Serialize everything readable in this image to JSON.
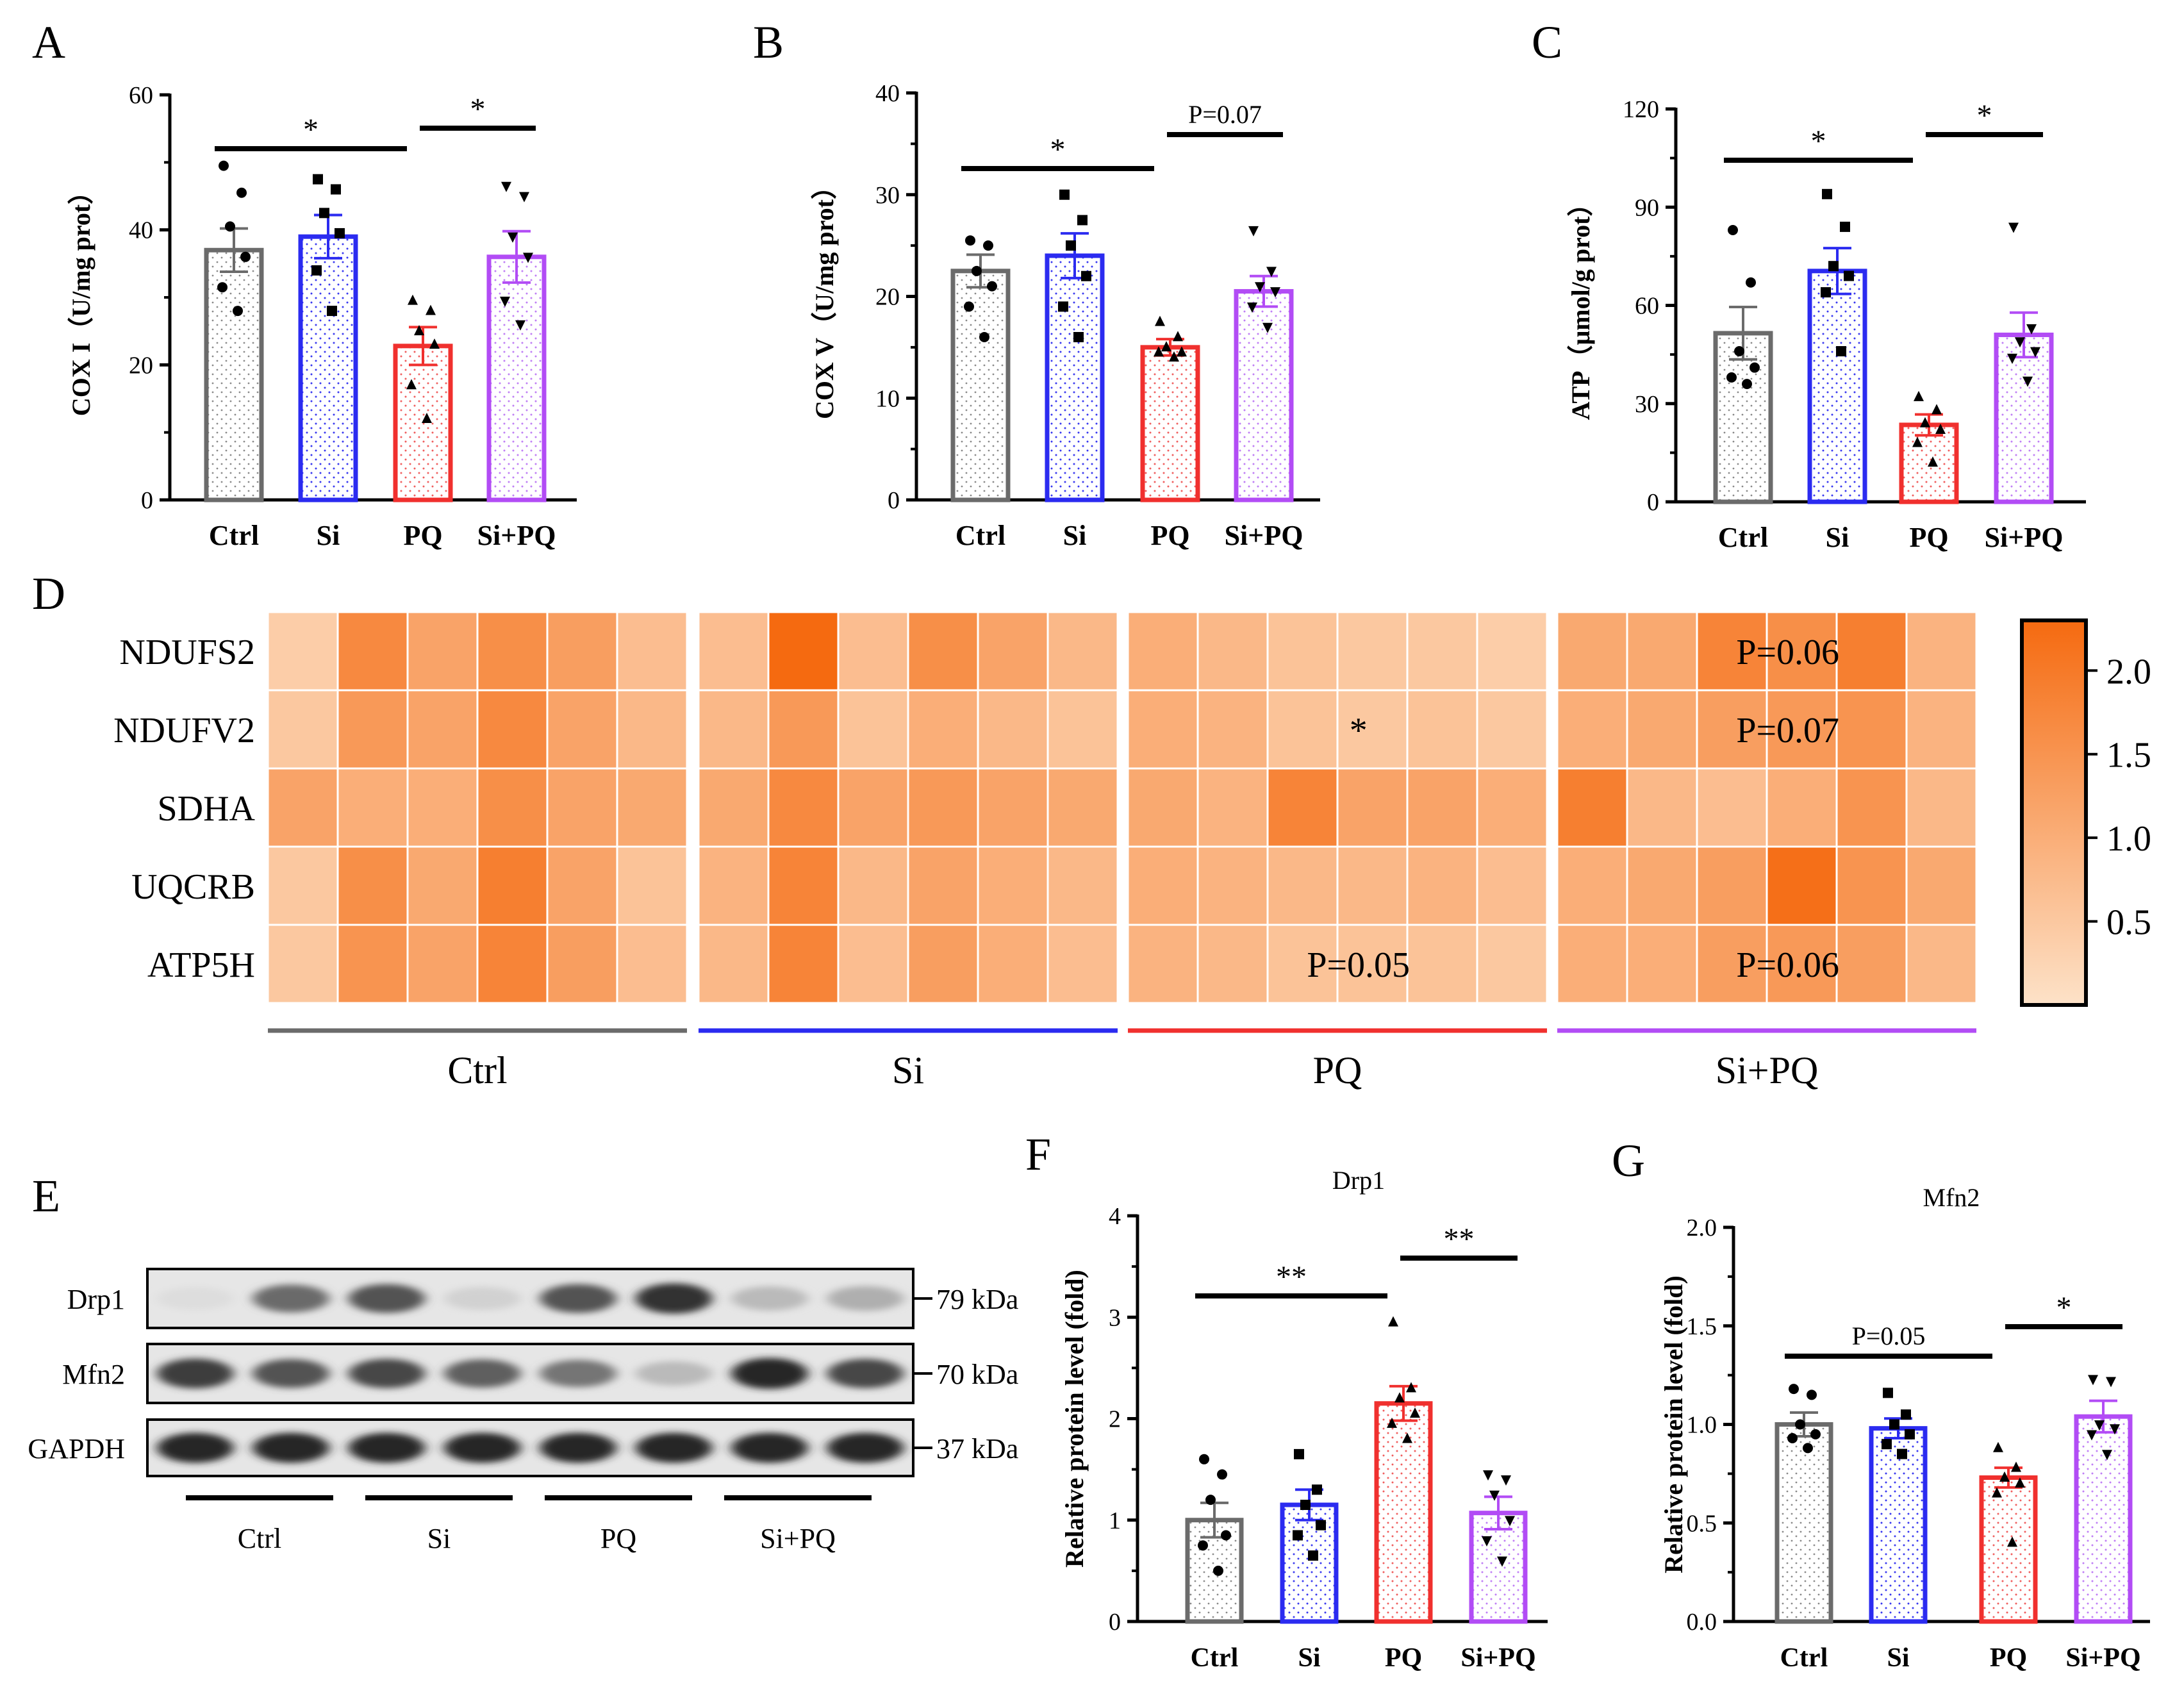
{
  "figure": {
    "panel_letters": [
      "A",
      "B",
      "C",
      "D",
      "E",
      "F",
      "G"
    ],
    "colors": {
      "Ctrl": "#6b6b6b",
      "Si": "#2b2bf0",
      "PQ": "#f0302e",
      "Si+PQ": "#b24cf5",
      "axis": "#000000",
      "heat_low": "#fde2c8",
      "heat_high": "#f56a10"
    }
  },
  "chart_data": [
    {
      "panel": "A",
      "type": "bar",
      "categories": [
        "Ctrl",
        "Si",
        "PQ",
        "Si+PQ"
      ],
      "values": [
        37,
        39,
        22.8,
        36
      ],
      "errors": [
        3.2,
        3.2,
        2.8,
        3.8
      ],
      "points": [
        [
          49.5,
          45.5,
          40.5,
          36,
          31.5,
          28
        ],
        [
          47.5,
          46,
          42.5,
          39.5,
          34,
          28
        ],
        [
          29.5,
          28,
          25,
          23,
          17,
          12
        ],
        [
          46.5,
          45,
          39,
          36,
          29.5,
          26
        ]
      ],
      "ylabel": "COX I（U/mg prot）",
      "ylim": [
        0,
        60
      ],
      "yticks": [
        "0",
        "20",
        "40",
        "60"
      ],
      "sig": [
        {
          "from": 0,
          "to": 2,
          "label": "*"
        },
        {
          "from": 2,
          "to": 3,
          "label": "*"
        }
      ]
    },
    {
      "panel": "B",
      "type": "bar",
      "categories": [
        "Ctrl",
        "Si",
        "PQ",
        "Si+PQ"
      ],
      "values": [
        22.5,
        24,
        15,
        20.5
      ],
      "errors": [
        1.6,
        2.2,
        0.8,
        1.5
      ],
      "points": [
        [
          25.5,
          25,
          22.5,
          21,
          19,
          16
        ],
        [
          30,
          27.5,
          25,
          22,
          19,
          16
        ],
        [
          17.5,
          16,
          15,
          14.5,
          14.5,
          14
        ],
        [
          26.5,
          22.5,
          21,
          20.5,
          19,
          17
        ]
      ],
      "ylabel": "COX V（U/mg prot）",
      "ylim": [
        0,
        40
      ],
      "yticks": [
        "0",
        "10",
        "20",
        "30",
        "40"
      ],
      "sig": [
        {
          "from": 0,
          "to": 2,
          "label": "*"
        },
        {
          "from": 2,
          "to": 3,
          "label": "P=0.07"
        }
      ]
    },
    {
      "panel": "C",
      "type": "bar",
      "categories": [
        "Ctrl",
        "Si",
        "PQ",
        "Si+PQ"
      ],
      "values": [
        51.5,
        70.5,
        23.5,
        51
      ],
      "errors": [
        8.0,
        7.0,
        3.2,
        6.8
      ],
      "points": [
        [
          83,
          67,
          46,
          41,
          38,
          36
        ],
        [
          94,
          84,
          72,
          69,
          64,
          46
        ],
        [
          32,
          28,
          24,
          22,
          18,
          12
        ],
        [
          84,
          53,
          49,
          46,
          44,
          37
        ]
      ],
      "ylabel": "ATP（μmol/g prot）",
      "ylim": [
        0,
        120
      ],
      "yticks": [
        "0",
        "30",
        "60",
        "90",
        "120"
      ],
      "sig": [
        {
          "from": 0,
          "to": 2,
          "label": "*"
        },
        {
          "from": 2,
          "to": 3,
          "label": "*"
        }
      ]
    },
    {
      "panel": "D",
      "type": "heatmap",
      "rows": [
        "NDUFS2",
        "NDUFV2",
        "SDHA",
        "UQCRB",
        "ATP5H"
      ],
      "groups": [
        "Ctrl",
        "Si",
        "PQ",
        "Si+PQ"
      ],
      "values": [
        [
          [
            0.4,
            1.7,
            1.2,
            1.6,
            1.3,
            0.7
          ],
          [
            0.7,
            2.3,
            0.7,
            1.6,
            1.2,
            0.8
          ],
          [
            1.0,
            0.8,
            0.6,
            0.5,
            0.5,
            0.4
          ],
          [
            1.1,
            1.1,
            1.8,
            1.6,
            1.9,
            0.9
          ]
        ],
        [
          [
            0.5,
            1.4,
            1.2,
            1.7,
            1.2,
            0.8
          ],
          [
            0.8,
            1.4,
            0.6,
            1.0,
            0.8,
            0.6
          ],
          [
            1.0,
            0.9,
            0.6,
            0.5,
            0.6,
            0.5
          ],
          [
            1.0,
            1.1,
            1.3,
            1.4,
            1.5,
            0.9
          ]
        ],
        [
          [
            1.2,
            1.0,
            1.0,
            1.6,
            1.2,
            1.1
          ],
          [
            1.1,
            1.7,
            1.2,
            1.4,
            1.2,
            1.1
          ],
          [
            1.1,
            0.9,
            1.8,
            1.2,
            1.2,
            1.0
          ],
          [
            1.9,
            0.8,
            0.7,
            1.0,
            1.5,
            0.8
          ]
        ],
        [
          [
            0.5,
            1.6,
            1.1,
            1.9,
            1.2,
            0.6
          ],
          [
            0.9,
            1.8,
            0.8,
            1.2,
            1.0,
            0.8
          ],
          [
            1.0,
            0.9,
            0.8,
            0.8,
            0.9,
            0.7
          ],
          [
            1.0,
            1.1,
            1.3,
            2.2,
            1.5,
            1.1
          ]
        ],
        [
          [
            0.5,
            1.5,
            1.2,
            1.8,
            1.3,
            0.7
          ],
          [
            0.8,
            1.8,
            0.7,
            1.3,
            1.0,
            0.7
          ],
          [
            0.9,
            0.8,
            0.6,
            0.6,
            0.6,
            0.5
          ],
          [
            1.0,
            1.0,
            1.3,
            1.4,
            1.3,
            0.8
          ]
        ]
      ],
      "annotations": [
        {
          "row": 0,
          "group": 3,
          "label": "P=0.06"
        },
        {
          "row": 1,
          "group": 2,
          "label": "*"
        },
        {
          "row": 1,
          "group": 3,
          "label": "P=0.07"
        },
        {
          "row": 4,
          "group": 2,
          "label": "P=0.05"
        },
        {
          "row": 4,
          "group": 3,
          "label": "P=0.06"
        }
      ],
      "colorbar": {
        "min": 0,
        "max": 2.3,
        "ticks": [
          "2.0",
          "1.5",
          "1.0",
          "0.5"
        ]
      }
    },
    {
      "panel": "F",
      "type": "bar",
      "title": "Drp1",
      "categories": [
        "Ctrl",
        "Si",
        "PQ",
        "Si+PQ"
      ],
      "values": [
        1.0,
        1.15,
        2.15,
        1.07
      ],
      "errors": [
        0.17,
        0.15,
        0.17,
        0.16
      ],
      "points": [
        [
          1.6,
          1.45,
          1.2,
          0.85,
          0.75,
          0.5
        ],
        [
          1.65,
          1.3,
          1.15,
          0.95,
          0.85,
          0.65
        ],
        [
          2.95,
          2.3,
          2.2,
          2.05,
          1.95,
          1.8
        ],
        [
          1.45,
          1.4,
          1.25,
          1.0,
          0.8,
          0.6
        ]
      ],
      "ylabel": "Relative protein level (fold)",
      "ylim": [
        0,
        4
      ],
      "yticks": [
        "0",
        "1",
        "2",
        "3",
        "4"
      ],
      "sig": [
        {
          "from": 0,
          "to": 2,
          "label": "**"
        },
        {
          "from": 2,
          "to": 3,
          "label": "**"
        }
      ]
    },
    {
      "panel": "G",
      "type": "bar",
      "title": "Mfn2",
      "categories": [
        "Ctrl",
        "Si",
        "PQ",
        "Si+PQ"
      ],
      "values": [
        1.0,
        0.98,
        0.73,
        1.04
      ],
      "errors": [
        0.06,
        0.05,
        0.05,
        0.08
      ],
      "points": [
        [
          1.18,
          1.15,
          1.0,
          0.95,
          0.93,
          0.88
        ],
        [
          1.16,
          1.05,
          1.0,
          0.95,
          0.9,
          0.85
        ],
        [
          0.88,
          0.78,
          0.73,
          0.7,
          0.65,
          0.4
        ],
        [
          1.23,
          1.22,
          1.0,
          0.98,
          0.95,
          0.85
        ]
      ],
      "ylabel": "Relative protein level (fold)",
      "ylim": [
        0,
        2.0
      ],
      "yticks": [
        "0.0",
        "0.5",
        "1.0",
        "1.5",
        "2.0"
      ],
      "sig": [
        {
          "from": 0,
          "to": 2,
          "label": "P=0.05"
        },
        {
          "from": 2,
          "to": 3,
          "label": "*"
        }
      ]
    }
  ],
  "western_blot": {
    "bands": [
      {
        "name": "Drp1",
        "kda": "79 kDa",
        "intensity": [
          0.15,
          0.65,
          0.75,
          0.2,
          0.75,
          0.9,
          0.3,
          0.35
        ]
      },
      {
        "name": "Mfn2",
        "kda": "70 kDa",
        "intensity": [
          0.85,
          0.75,
          0.8,
          0.7,
          0.6,
          0.3,
          0.95,
          0.8
        ]
      },
      {
        "name": "GAPDH",
        "kda": "37 kDa",
        "intensity": [
          0.95,
          0.95,
          0.95,
          0.95,
          0.95,
          0.95,
          0.95,
          0.95
        ]
      }
    ],
    "groups": [
      "Ctrl",
      "Si",
      "PQ",
      "Si+PQ"
    ]
  }
}
